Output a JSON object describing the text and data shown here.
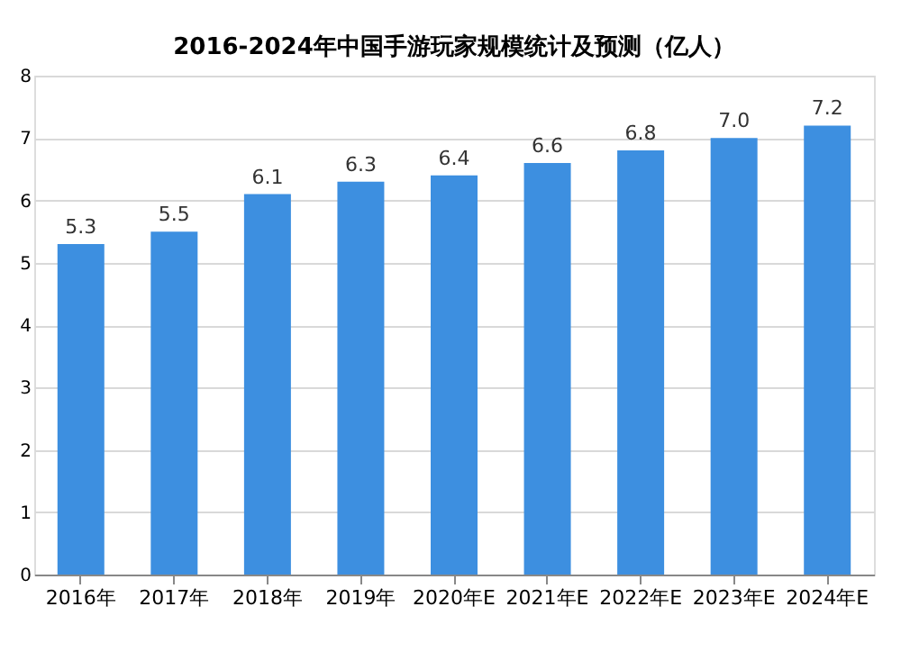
{
  "chart_data": {
    "type": "bar",
    "title": "2016-2024年中国手游玩家规模统计及预测（亿人）",
    "categories": [
      "2016年",
      "2017年",
      "2018年",
      "2019年",
      "2020年E",
      "2021年E",
      "2022年E",
      "2023年E",
      "2024年E"
    ],
    "values": [
      5.3,
      5.5,
      6.1,
      6.3,
      6.4,
      6.6,
      6.8,
      7.0,
      7.2
    ],
    "value_labels": [
      "5.3",
      "5.5",
      "6.1",
      "6.3",
      "6.4",
      "6.6",
      "6.8",
      "7.0",
      "7.2"
    ],
    "color": "#3d8fe0",
    "ylim": [
      0,
      8
    ],
    "yticks": [
      0,
      1,
      2,
      3,
      4,
      5,
      6,
      7,
      8
    ],
    "grid": "y"
  }
}
